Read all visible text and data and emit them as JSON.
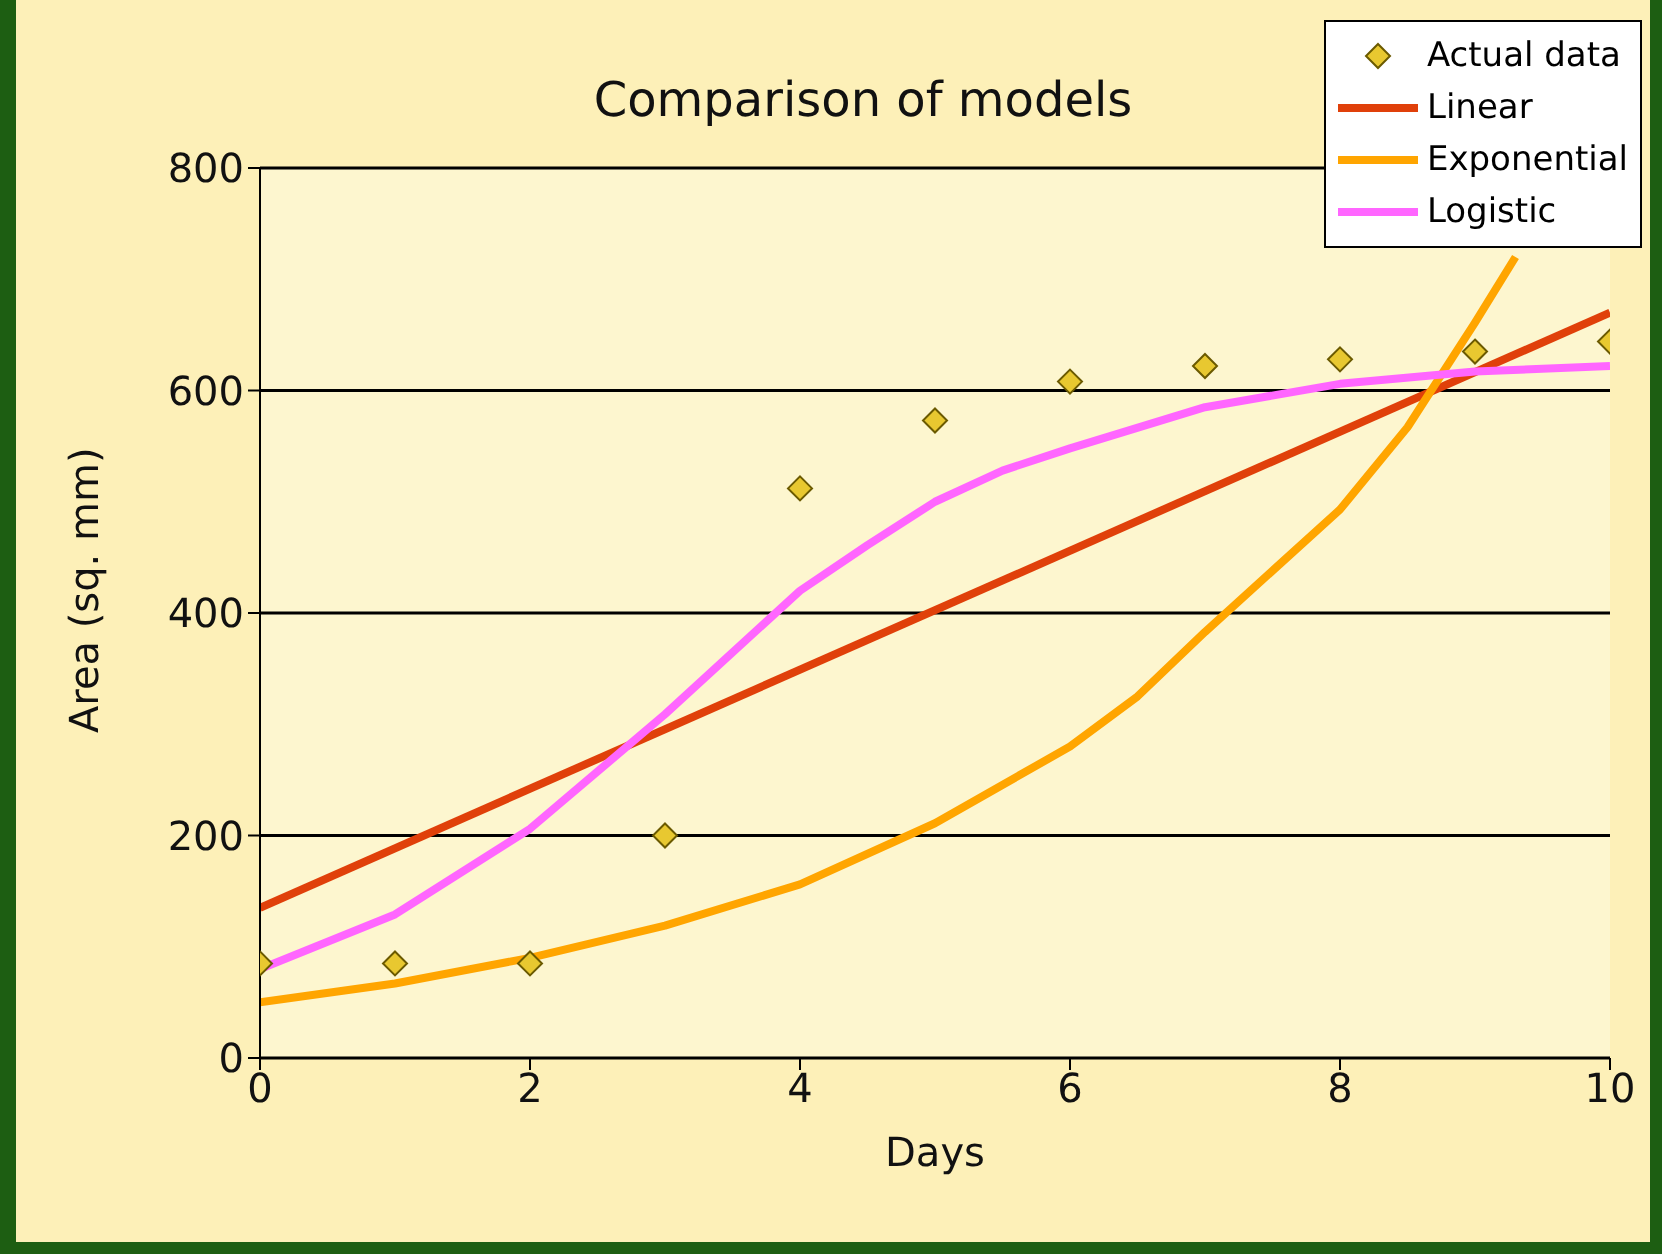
{
  "chart_data": {
    "type": "line",
    "title": "Comparison of models",
    "xlabel": "Days",
    "ylabel": "Area (sq. mm)",
    "xlim": [
      0,
      10
    ],
    "xticks": [
      0,
      2,
      4,
      6,
      8,
      10
    ],
    "ylim": [
      0,
      800
    ],
    "yticks": [
      0,
      200,
      400,
      600,
      800
    ],
    "grid": "y",
    "legend": "top right",
    "series": [
      {
        "name": "Actual data",
        "type": "scatter",
        "marker": "diamond",
        "color": "#e8c830",
        "x": [
          0,
          1,
          2,
          3,
          4,
          5,
          6,
          7,
          8,
          9,
          10
        ],
        "values": [
          85,
          85,
          85,
          200,
          512,
          573,
          608,
          622,
          628,
          635,
          644
        ]
      },
      {
        "name": "Linear",
        "type": "line",
        "color": "#e0400a",
        "x": [
          0,
          10
        ],
        "values": [
          135,
          670
        ]
      },
      {
        "name": "Exponential",
        "type": "line",
        "color": "#ffa500",
        "x": [
          0,
          1,
          2,
          3,
          4,
          5,
          6,
          6.5,
          7,
          8,
          8.5,
          9,
          9.3
        ],
        "values": [
          50,
          67,
          90,
          119,
          156,
          211,
          280,
          325,
          383,
          493,
          567,
          661,
          720
        ]
      },
      {
        "name": "Logistic",
        "type": "line",
        "color": "#ff66ff",
        "x": [
          0,
          1,
          2,
          3,
          4,
          4.5,
          5,
          5.5,
          6,
          7,
          8,
          9,
          10
        ],
        "values": [
          80,
          129,
          206,
          309,
          420,
          461,
          500,
          528,
          548,
          585,
          606,
          617,
          622
        ]
      }
    ]
  }
}
